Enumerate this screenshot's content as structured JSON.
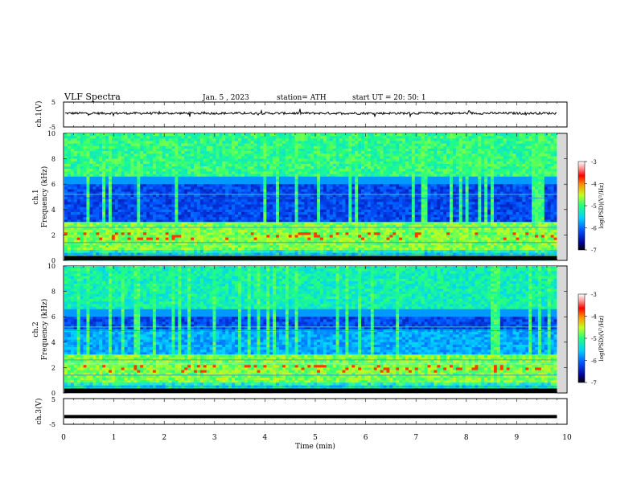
{
  "header": {
    "title": "VLF  Spectra",
    "date": "Jan. 5  , 2023",
    "station": "station= ATH",
    "start_ut": "start  UT  =    20: 50: 1"
  },
  "chart_data": [
    {
      "type": "line",
      "name": "ch1-waveform",
      "ylabel": "ch.1(V)",
      "yticks": [
        "5",
        "-5"
      ],
      "ylim": [
        -5,
        5
      ],
      "xlim": [
        0,
        10
      ],
      "baseline_value": 0.5
    },
    {
      "type": "heatmap",
      "name": "ch1-spectrogram",
      "ylabel": "ch.1\nFrequency  (kHz)",
      "ylabel_line1": "ch.1",
      "ylabel_line2": "Frequency  (kHz)",
      "yticks": [
        "0",
        "2",
        "4",
        "6",
        "8",
        "10"
      ],
      "ylim": [
        0,
        10
      ],
      "xlim": [
        0,
        10
      ],
      "colorbar": {
        "label": "log(PSD)(V²/Hz)",
        "ticks": [
          "-3",
          "-4",
          "-5",
          "-6",
          "-7"
        ],
        "range": [
          -7,
          -3
        ]
      }
    },
    {
      "type": "heatmap",
      "name": "ch2-spectrogram",
      "ylabel_line1": "ch.2",
      "ylabel_line2": "Frequency  (kHz)",
      "yticks": [
        "0",
        "2",
        "4",
        "6",
        "8",
        "10"
      ],
      "ylim": [
        0,
        10
      ],
      "xlim": [
        0,
        10
      ],
      "colorbar": {
        "label": "log(PSD)(V²/Hz)",
        "ticks": [
          "-3",
          "-4",
          "-5",
          "-6",
          "-7"
        ],
        "range": [
          -7,
          -3
        ]
      }
    },
    {
      "type": "line",
      "name": "ch3-waveform",
      "ylabel": "ch.3(V)",
      "yticks": [
        "5",
        "-5"
      ],
      "ylim": [
        -5,
        5
      ],
      "xlim": [
        0,
        9.8
      ],
      "value": -2
    }
  ],
  "xaxis": {
    "label": "Time  (min)",
    "ticks": [
      "0",
      "1",
      "2",
      "3",
      "4",
      "5",
      "6",
      "7",
      "8",
      "9",
      "10"
    ],
    "range": [
      0,
      10
    ]
  }
}
